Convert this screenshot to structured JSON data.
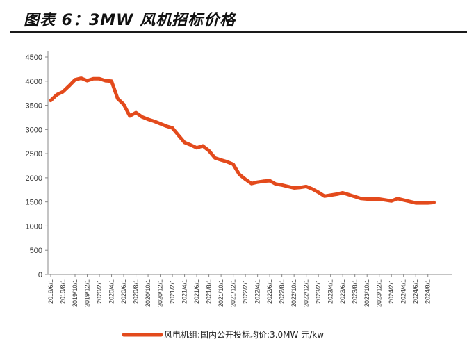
{
  "header": {
    "title": "图表 6：3MW 风机招标价格"
  },
  "chart_data": {
    "type": "line",
    "title": "图表 6：3MW 风机招标价格",
    "xlabel": "",
    "ylabel": "",
    "ylim": [
      0,
      4500
    ],
    "yticks": [
      0,
      500,
      1000,
      1500,
      2000,
      2500,
      3000,
      3500,
      4000,
      4500
    ],
    "grid": false,
    "legend_position": "bottom",
    "x_tick_labels": [
      "2019/6/1",
      "2019/8/1",
      "2019/10/1",
      "2019/12/1",
      "2020/2/1",
      "2020/4/1",
      "2020/6/1",
      "2020/8/1",
      "2020/10/1",
      "2020/12/1",
      "2021/2/1",
      "2021/4/1",
      "2021/6/1",
      "2021/8/1",
      "2021/10/1",
      "2021/12/1",
      "2022/2/1",
      "2022/4/1",
      "2022/6/1",
      "2022/8/1",
      "2022/10/1",
      "2022/12/1",
      "2023/2/1",
      "2023/4/1",
      "2023/6/1",
      "2023/8/1",
      "2023/10/1",
      "2023/12/1",
      "2024/2/1",
      "2024/4/1",
      "2024/6/1",
      "2024/8/1"
    ],
    "series": [
      {
        "name": "风电机组:国内公开投标均价:3.0MW 元/kw",
        "color": "#e34a1c",
        "points": [
          [
            "2019/6/1",
            3600
          ],
          [
            "2019/7/1",
            3720
          ],
          [
            "2019/8/1",
            3780
          ],
          [
            "2019/9/1",
            3900
          ],
          [
            "2019/10/1",
            4030
          ],
          [
            "2019/11/1",
            4060
          ],
          [
            "2019/12/1",
            4010
          ],
          [
            "2020/1/1",
            4050
          ],
          [
            "2020/2/1",
            4050
          ],
          [
            "2020/3/1",
            4010
          ],
          [
            "2020/4/1",
            4000
          ],
          [
            "2020/5/1",
            3640
          ],
          [
            "2020/6/1",
            3520
          ],
          [
            "2020/7/1",
            3280
          ],
          [
            "2020/8/1",
            3350
          ],
          [
            "2020/9/1",
            3260
          ],
          [
            "2020/10/1",
            3210
          ],
          [
            "2020/11/1",
            3170
          ],
          [
            "2020/12/1",
            3120
          ],
          [
            "2021/1/1",
            3070
          ],
          [
            "2021/2/1",
            3030
          ],
          [
            "2021/3/1",
            2880
          ],
          [
            "2021/4/1",
            2730
          ],
          [
            "2021/5/1",
            2680
          ],
          [
            "2021/6/1",
            2620
          ],
          [
            "2021/7/1",
            2660
          ],
          [
            "2021/8/1",
            2560
          ],
          [
            "2021/9/1",
            2410
          ],
          [
            "2021/10/1",
            2370
          ],
          [
            "2021/11/1",
            2330
          ],
          [
            "2021/12/1",
            2280
          ],
          [
            "2022/1/1",
            2070
          ],
          [
            "2022/2/1",
            1970
          ],
          [
            "2022/3/1",
            1880
          ],
          [
            "2022/4/1",
            1910
          ],
          [
            "2022/5/1",
            1930
          ],
          [
            "2022/6/1",
            1940
          ],
          [
            "2022/7/1",
            1870
          ],
          [
            "2022/8/1",
            1850
          ],
          [
            "2022/9/1",
            1820
          ],
          [
            "2022/10/1",
            1790
          ],
          [
            "2022/11/1",
            1800
          ],
          [
            "2022/12/1",
            1820
          ],
          [
            "2023/1/1",
            1770
          ],
          [
            "2023/2/1",
            1700
          ],
          [
            "2023/3/1",
            1620
          ],
          [
            "2023/4/1",
            1640
          ],
          [
            "2023/5/1",
            1660
          ],
          [
            "2023/6/1",
            1690
          ],
          [
            "2023/7/1",
            1650
          ],
          [
            "2023/8/1",
            1610
          ],
          [
            "2023/9/1",
            1570
          ],
          [
            "2023/10/1",
            1560
          ],
          [
            "2023/11/1",
            1560
          ],
          [
            "2023/12/1",
            1560
          ],
          [
            "2024/1/1",
            1540
          ],
          [
            "2024/2/1",
            1520
          ],
          [
            "2024/3/1",
            1570
          ],
          [
            "2024/4/1",
            1540
          ],
          [
            "2024/5/1",
            1510
          ],
          [
            "2024/6/1",
            1480
          ],
          [
            "2024/7/1",
            1480
          ],
          [
            "2024/8/1",
            1480
          ],
          [
            "2024/9/1",
            1490
          ]
        ]
      }
    ]
  }
}
